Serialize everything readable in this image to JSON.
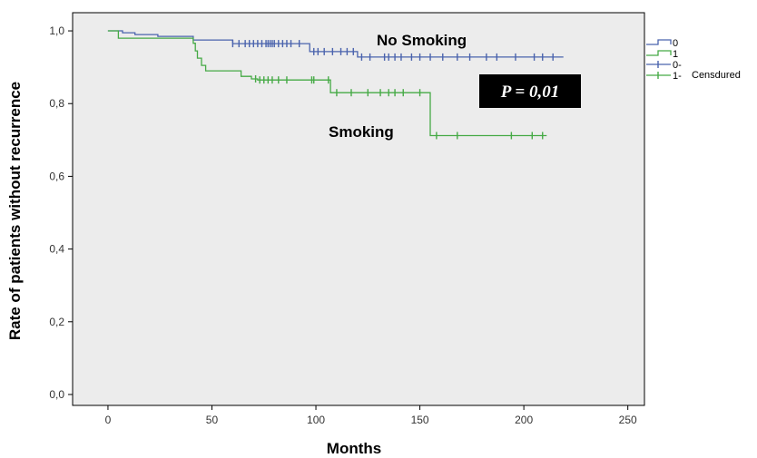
{
  "chart_data": {
    "type": "line",
    "xlabel": "Months",
    "ylabel": "Rate of patients without recurrence",
    "xlim": [
      -17,
      258
    ],
    "ylim": [
      -0.03,
      1.05
    ],
    "x_ticks": [
      0,
      50,
      100,
      150,
      200,
      250
    ],
    "x_tick_labels": [
      "0",
      "50",
      "100",
      "150",
      "200",
      "250"
    ],
    "y_ticks": [
      0.0,
      0.2,
      0.4,
      0.6,
      0.8,
      1.0
    ],
    "y_tick_labels": [
      "0,0",
      "0,2",
      "0,4",
      "0,6",
      "0,8",
      "1,0"
    ],
    "grid": false,
    "background": "#ececec",
    "legend_position": "right",
    "legend": {
      "entries": [
        "0",
        "1",
        "0-",
        "1-"
      ],
      "censored_label": "Censdured"
    },
    "annotations": {
      "p_value": "P = 0,01",
      "group_0_label": "No Smoking",
      "group_1_label": "Smoking"
    },
    "series": [
      {
        "name": "0",
        "color": "#4a63ad",
        "steps": [
          [
            0,
            1.0
          ],
          [
            7,
            0.995
          ],
          [
            13,
            0.99
          ],
          [
            24,
            0.985
          ],
          [
            41,
            0.975
          ],
          [
            60,
            0.965
          ],
          [
            97,
            0.943
          ],
          [
            120,
            0.928
          ],
          [
            150,
            0.928
          ],
          [
            219,
            0.928
          ]
        ],
        "censored": [
          60,
          63,
          66,
          68,
          70,
          72,
          74,
          76,
          77,
          78,
          79,
          80,
          82,
          84,
          86,
          88,
          92,
          99,
          101,
          104,
          108,
          112,
          115,
          118,
          122,
          126,
          133,
          135,
          138,
          141,
          146,
          150,
          155,
          161,
          168,
          174,
          182,
          187,
          196,
          205,
          209,
          214
        ]
      },
      {
        "name": "1",
        "color": "#46aa46",
        "steps": [
          [
            0,
            1.0
          ],
          [
            5,
            0.98
          ],
          [
            41,
            0.966
          ],
          [
            42,
            0.945
          ],
          [
            43,
            0.925
          ],
          [
            45,
            0.905
          ],
          [
            47,
            0.89
          ],
          [
            64,
            0.875
          ],
          [
            69,
            0.868
          ],
          [
            72,
            0.865
          ],
          [
            107,
            0.83
          ],
          [
            155,
            0.712
          ],
          [
            211,
            0.712
          ]
        ],
        "censored": [
          71,
          73,
          75,
          77,
          79,
          82,
          86,
          98,
          99,
          106,
          110,
          117,
          125,
          131,
          135,
          138,
          142,
          150,
          158,
          168,
          194,
          204,
          209
        ]
      }
    ]
  }
}
